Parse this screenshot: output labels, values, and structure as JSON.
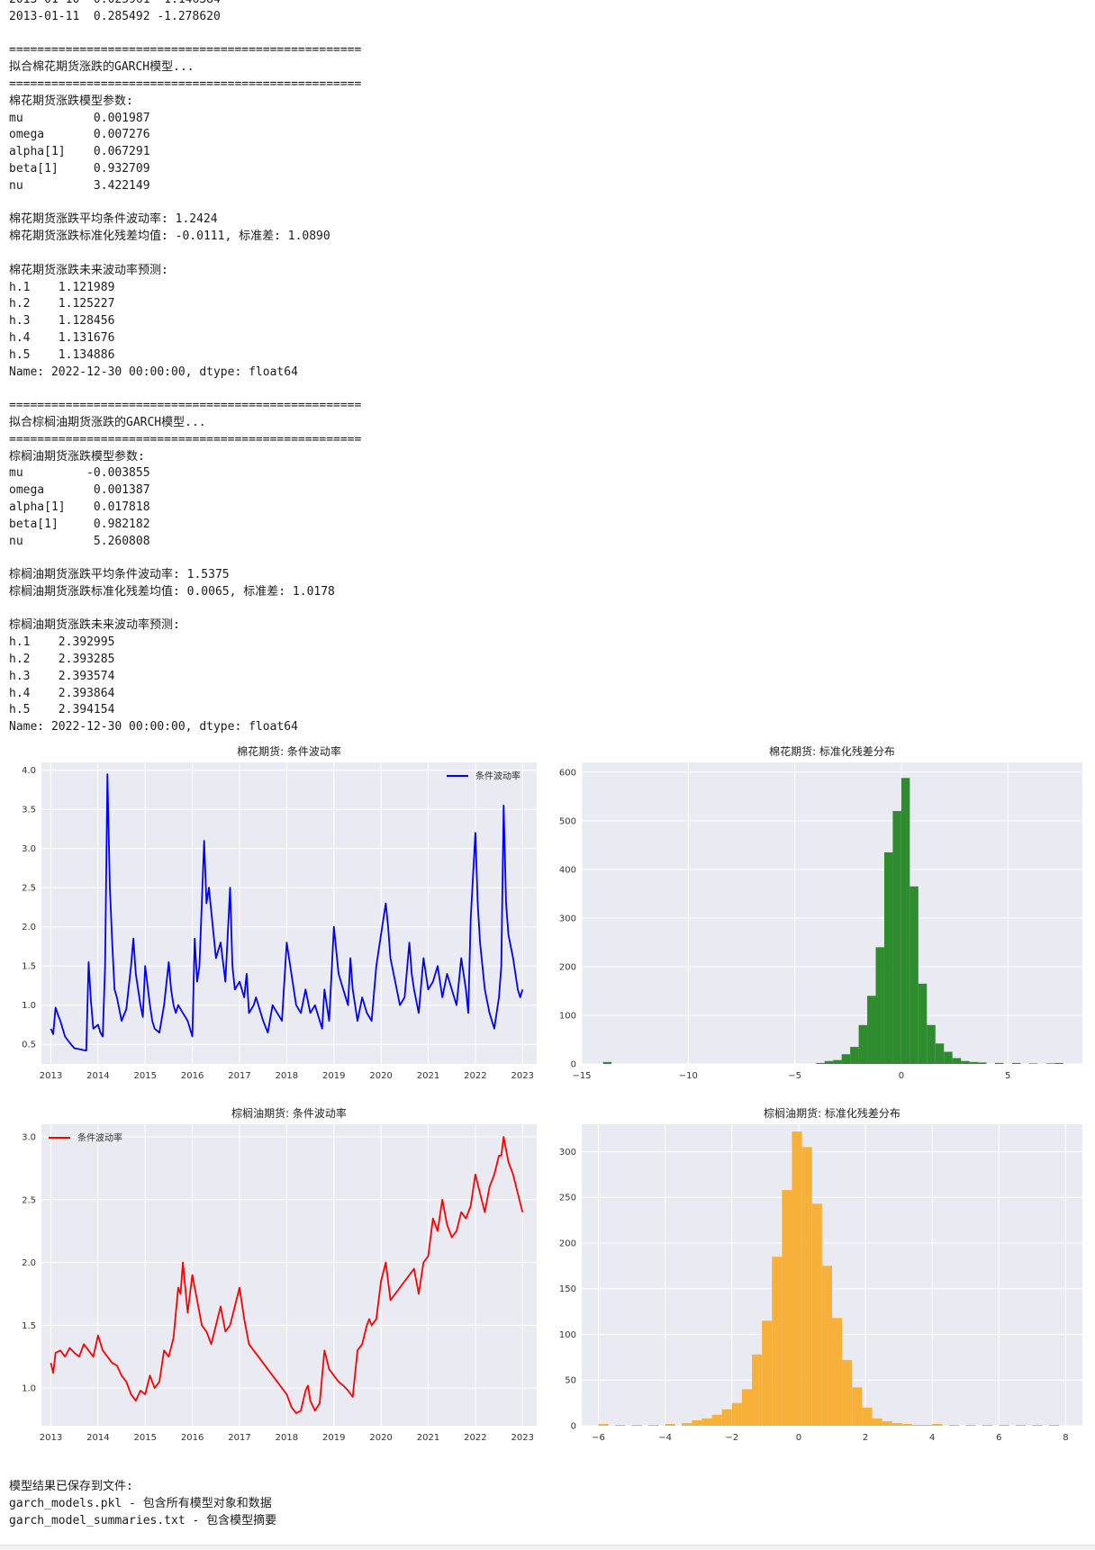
{
  "output_top": {
    "lines": [
      "2013-01-10  0.025961 -1.146384",
      "2013-01-11  0.285492 -1.278620",
      "",
      "==================================================",
      "拟合棉花期货涨跌的GARCH模型...",
      "==================================================",
      "棉花期货涨跌模型参数:",
      "mu          0.001987",
      "omega       0.007276",
      "alpha[1]    0.067291",
      "beta[1]     0.932709",
      "nu          3.422149",
      "",
      "棉花期货涨跌平均条件波动率: 1.2424",
      "棉花期货涨跌标准化残差均值: -0.0111, 标准差: 1.0890",
      "",
      "棉花期货涨跌未来波动率预测:",
      "h.1    1.121989",
      "h.2    1.125227",
      "h.3    1.128456",
      "h.4    1.131676",
      "h.5    1.134886",
      "Name: 2022-12-30 00:00:00, dtype: float64",
      "",
      "==================================================",
      "拟合棕榈油期货涨跌的GARCH模型...",
      "==================================================",
      "棕榈油期货涨跌模型参数:",
      "mu         -0.003855",
      "omega       0.001387",
      "alpha[1]    0.017818",
      "beta[1]     0.982182",
      "nu          5.260808",
      "",
      "棕榈油期货涨跌平均条件波动率: 1.5375",
      "棕榈油期货涨跌标准化残差均值: 0.0065, 标准差: 1.0178",
      "",
      "棕榈油期货涨跌未来波动率预测:",
      "h.1    2.392995",
      "h.2    2.393285",
      "h.3    2.393574",
      "h.4    2.393864",
      "h.5    2.394154",
      "Name: 2022-12-30 00:00:00, dtype: float64"
    ]
  },
  "output_bottom": {
    "lines": [
      "模型结果已保存到文件:",
      "garch_models.pkl - 包含所有模型对象和数据",
      "garch_model_summaries.txt - 包含模型摘要"
    ]
  },
  "colors": {
    "plot_bg": "#eaeaf2",
    "grid": "#ffffff",
    "cotton_line": "#0000ff",
    "palm_line": "#ff0000",
    "cotton_hist": "#2e8b2e",
    "palm_hist": "#f7b13a"
  },
  "chart_data": [
    {
      "type": "line",
      "title": "棉花期货: 条件波动率",
      "legend": "top-right",
      "x_ticks": [
        "2013",
        "2014",
        "2015",
        "2016",
        "2017",
        "2018",
        "2019",
        "2020",
        "2021",
        "2022",
        "2023"
      ],
      "y_ticks": [
        "0.5",
        "1.0",
        "1.5",
        "2.0",
        "2.5",
        "3.0",
        "3.5",
        "4.0"
      ],
      "xlim": [
        2012.8,
        2023.3
      ],
      "ylim": [
        0.25,
        4.1
      ],
      "grid": true,
      "series": [
        {
          "name": "条件波动率",
          "x": [
            2013.0,
            2013.05,
            2013.1,
            2013.15,
            2013.2,
            2013.3,
            2013.4,
            2013.5,
            2013.6,
            2013.75,
            2013.8,
            2013.85,
            2013.9,
            2014.0,
            2014.05,
            2014.1,
            2014.15,
            2014.2,
            2014.25,
            2014.3,
            2014.35,
            2014.4,
            2014.5,
            2014.6,
            2014.7,
            2014.75,
            2014.8,
            2014.85,
            2014.9,
            2014.95,
            2015.0,
            2015.1,
            2015.15,
            2015.2,
            2015.3,
            2015.4,
            2015.5,
            2015.55,
            2015.6,
            2015.65,
            2015.7,
            2015.8,
            2015.9,
            2016.0,
            2016.05,
            2016.1,
            2016.15,
            2016.2,
            2016.25,
            2016.3,
            2016.35,
            2016.4,
            2016.45,
            2016.5,
            2016.6,
            2016.7,
            2016.8,
            2016.85,
            2016.9,
            2017.0,
            2017.1,
            2017.15,
            2017.2,
            2017.3,
            2017.35,
            2017.5,
            2017.6,
            2017.7,
            2017.8,
            2017.9,
            2018.0,
            2018.1,
            2018.2,
            2018.3,
            2018.4,
            2018.5,
            2018.6,
            2018.75,
            2018.8,
            2018.9,
            2019.0,
            2019.1,
            2019.2,
            2019.3,
            2019.35,
            2019.4,
            2019.5,
            2019.6,
            2019.7,
            2019.8,
            2019.9,
            2020.0,
            2020.1,
            2020.15,
            2020.2,
            2020.3,
            2020.4,
            2020.5,
            2020.6,
            2020.65,
            2020.7,
            2020.8,
            2020.9,
            2021.0,
            2021.1,
            2021.2,
            2021.3,
            2021.4,
            2021.5,
            2021.6,
            2021.7,
            2021.8,
            2021.85,
            2021.9,
            2022.0,
            2022.05,
            2022.1,
            2022.2,
            2022.3,
            2022.4,
            2022.5,
            2022.55,
            2022.6,
            2022.65,
            2022.7,
            2022.8,
            2022.85,
            2022.9,
            2022.95,
            2023.0
          ],
          "values": [
            0.7,
            0.63,
            0.97,
            0.88,
            0.8,
            0.6,
            0.52,
            0.45,
            0.44,
            0.42,
            1.55,
            1.05,
            0.7,
            0.75,
            0.65,
            0.6,
            1.5,
            3.95,
            2.5,
            1.8,
            1.2,
            1.1,
            0.8,
            0.95,
            1.5,
            1.85,
            1.4,
            1.2,
            1.0,
            0.85,
            1.5,
            1.0,
            0.8,
            0.7,
            0.65,
            1.0,
            1.55,
            1.2,
            1.0,
            0.9,
            1.0,
            0.9,
            0.8,
            0.6,
            1.85,
            1.3,
            1.5,
            2.3,
            3.1,
            2.3,
            2.5,
            2.2,
            1.9,
            1.6,
            1.8,
            1.3,
            2.5,
            1.5,
            1.2,
            1.3,
            1.1,
            1.4,
            0.9,
            1.0,
            1.1,
            0.8,
            0.65,
            1.0,
            0.9,
            0.8,
            1.8,
            1.4,
            1.0,
            0.9,
            1.2,
            0.9,
            1.0,
            0.7,
            1.2,
            0.8,
            2.0,
            1.4,
            1.2,
            1.0,
            1.6,
            1.2,
            0.8,
            1.1,
            0.9,
            0.8,
            1.5,
            1.9,
            2.3,
            2.0,
            1.6,
            1.3,
            1.0,
            1.1,
            1.8,
            1.4,
            1.2,
            0.9,
            1.6,
            1.2,
            1.3,
            1.5,
            1.1,
            1.4,
            1.2,
            1.0,
            1.6,
            1.2,
            0.9,
            2.1,
            3.2,
            2.3,
            1.8,
            1.2,
            0.9,
            0.7,
            1.1,
            1.5,
            3.55,
            2.3,
            1.9,
            1.6,
            1.4,
            1.2,
            1.1,
            1.2
          ]
        }
      ]
    },
    {
      "type": "bar",
      "title": "棉花期货: 标准化残差分布",
      "x_ticks": [
        "−15",
        "−10",
        "−5",
        "0",
        "5"
      ],
      "y_ticks": [
        "0",
        "100",
        "200",
        "300",
        "400",
        "500",
        "600"
      ],
      "xlim": [
        -15,
        8.5
      ],
      "ylim": [
        0,
        620
      ],
      "grid": true,
      "bin_starts": [
        -14.0,
        -4.0,
        -3.6,
        -3.2,
        -2.8,
        -2.4,
        -2.0,
        -1.6,
        -1.2,
        -0.8,
        -0.4,
        0.0,
        0.4,
        0.8,
        1.2,
        1.6,
        2.0,
        2.4,
        2.8,
        3.2,
        3.6,
        4.4,
        5.2,
        6.0,
        6.8,
        7.2
      ],
      "bin_width": 0.4,
      "values": [
        4,
        2,
        6,
        8,
        20,
        35,
        80,
        140,
        240,
        435,
        520,
        588,
        365,
        165,
        80,
        42,
        25,
        12,
        6,
        4,
        3,
        2,
        2,
        1,
        1,
        2
      ]
    },
    {
      "type": "line",
      "title": "棕榈油期货: 条件波动率",
      "legend": "top-left",
      "x_ticks": [
        "2013",
        "2014",
        "2015",
        "2016",
        "2017",
        "2018",
        "2019",
        "2020",
        "2021",
        "2022",
        "2023"
      ],
      "y_ticks": [
        "1.0",
        "1.5",
        "2.0",
        "2.5",
        "3.0"
      ],
      "xlim": [
        2012.8,
        2023.3
      ],
      "ylim": [
        0.7,
        3.1
      ],
      "grid": true,
      "series": [
        {
          "name": "条件波动率",
          "x": [
            2013.0,
            2013.05,
            2013.1,
            2013.2,
            2013.3,
            2013.4,
            2013.5,
            2013.6,
            2013.7,
            2013.8,
            2013.9,
            2014.0,
            2014.1,
            2014.2,
            2014.3,
            2014.4,
            2014.5,
            2014.6,
            2014.7,
            2014.8,
            2014.9,
            2015.0,
            2015.1,
            2015.2,
            2015.3,
            2015.4,
            2015.5,
            2015.6,
            2015.7,
            2015.75,
            2015.8,
            2015.9,
            2016.0,
            2016.1,
            2016.2,
            2016.3,
            2016.4,
            2016.5,
            2016.6,
            2016.7,
            2016.8,
            2016.9,
            2017.0,
            2017.1,
            2017.2,
            2017.3,
            2017.4,
            2017.5,
            2017.6,
            2017.7,
            2017.8,
            2017.9,
            2018.0,
            2018.1,
            2018.2,
            2018.3,
            2018.4,
            2018.45,
            2018.5,
            2018.6,
            2018.7,
            2018.8,
            2018.9,
            2019.0,
            2019.1,
            2019.2,
            2019.3,
            2019.4,
            2019.5,
            2019.6,
            2019.7,
            2019.75,
            2019.8,
            2019.9,
            2020.0,
            2020.1,
            2020.2,
            2020.3,
            2020.4,
            2020.5,
            2020.6,
            2020.7,
            2020.8,
            2020.9,
            2021.0,
            2021.1,
            2021.2,
            2021.3,
            2021.4,
            2021.5,
            2021.6,
            2021.7,
            2021.8,
            2021.9,
            2022.0,
            2022.1,
            2022.2,
            2022.3,
            2022.4,
            2022.5,
            2022.55,
            2022.6,
            2022.7,
            2022.8,
            2022.9,
            2023.0
          ],
          "values": [
            1.2,
            1.12,
            1.28,
            1.3,
            1.25,
            1.32,
            1.28,
            1.25,
            1.35,
            1.3,
            1.25,
            1.42,
            1.3,
            1.25,
            1.2,
            1.18,
            1.1,
            1.05,
            0.95,
            0.9,
            0.98,
            0.95,
            1.1,
            1.0,
            1.05,
            1.3,
            1.25,
            1.4,
            1.8,
            1.75,
            2.0,
            1.6,
            1.9,
            1.7,
            1.5,
            1.45,
            1.35,
            1.5,
            1.65,
            1.45,
            1.5,
            1.65,
            1.8,
            1.55,
            1.35,
            1.3,
            1.25,
            1.2,
            1.15,
            1.1,
            1.05,
            1.0,
            0.95,
            0.85,
            0.8,
            0.82,
            0.98,
            1.02,
            0.9,
            0.82,
            0.88,
            1.3,
            1.15,
            1.1,
            1.05,
            1.02,
            0.98,
            0.93,
            1.3,
            1.35,
            1.5,
            1.55,
            1.5,
            1.55,
            1.85,
            2.0,
            1.7,
            1.75,
            1.8,
            1.85,
            1.9,
            1.95,
            1.75,
            2.0,
            2.05,
            2.35,
            2.25,
            2.5,
            2.3,
            2.2,
            2.25,
            2.4,
            2.35,
            2.45,
            2.7,
            2.55,
            2.4,
            2.6,
            2.7,
            2.85,
            2.85,
            3.0,
            2.8,
            2.7,
            2.55,
            2.4
          ]
        }
      ]
    },
    {
      "type": "bar",
      "title": "棕榈油期货: 标准化残差分布",
      "x_ticks": [
        "−6",
        "−4",
        "−2",
        "0",
        "2",
        "4",
        "6",
        "8"
      ],
      "y_ticks": [
        "0",
        "50",
        "100",
        "150",
        "200",
        "250",
        "300"
      ],
      "xlim": [
        -6.5,
        8.5
      ],
      "ylim": [
        0,
        330
      ],
      "grid": true,
      "bin_starts": [
        -6.0,
        -5.5,
        -5.0,
        -4.5,
        -4.0,
        -3.5,
        -3.2,
        -2.9,
        -2.6,
        -2.3,
        -2.0,
        -1.7,
        -1.4,
        -1.1,
        -0.8,
        -0.5,
        -0.2,
        0.1,
        0.4,
        0.7,
        1.0,
        1.3,
        1.6,
        1.9,
        2.2,
        2.5,
        2.8,
        3.1,
        3.4,
        3.7,
        4.0,
        4.5,
        5.0,
        5.5,
        6.0,
        6.5,
        7.0,
        7.5
      ],
      "bin_width": 0.3,
      "values": [
        2,
        1,
        1,
        1,
        2,
        3,
        6,
        8,
        12,
        18,
        25,
        40,
        78,
        115,
        185,
        258,
        322,
        305,
        243,
        175,
        118,
        72,
        42,
        20,
        8,
        5,
        3,
        2,
        1,
        1,
        2,
        1,
        1,
        1,
        1,
        1,
        1,
        1
      ]
    }
  ]
}
